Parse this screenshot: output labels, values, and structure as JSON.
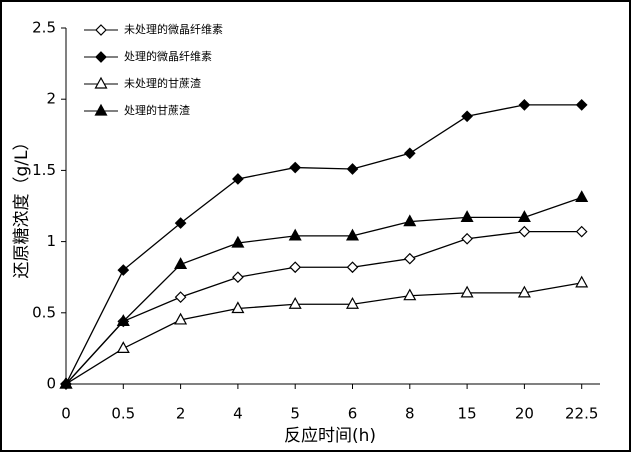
{
  "chart_data": {
    "type": "line",
    "x_label": "反应时间(h)",
    "y_label": "还原糖浓度（g/L）",
    "categories": [
      "0",
      "0.5",
      "2",
      "4",
      "5",
      "6",
      "8",
      "15",
      "20",
      "22.5"
    ],
    "series": [
      {
        "name": "未处理的微晶纤维素",
        "color": "#000000",
        "marker": "diamond",
        "filled": false,
        "values": [
          0,
          0.44,
          0.61,
          0.75,
          0.82,
          0.82,
          0.88,
          1.02,
          1.07,
          1.07
        ]
      },
      {
        "name": "处理的微晶纤维素",
        "color": "#000000",
        "marker": "diamond",
        "filled": true,
        "values": [
          0,
          0.8,
          1.13,
          1.44,
          1.52,
          1.51,
          1.62,
          1.88,
          1.96,
          1.96
        ]
      },
      {
        "name": "未处理的甘蔗渣",
        "color": "#000000",
        "marker": "triangle",
        "filled": false,
        "values": [
          0,
          0.25,
          0.45,
          0.53,
          0.56,
          0.56,
          0.62,
          0.64,
          0.64,
          0.71
        ]
      },
      {
        "name": "处理的甘蔗渣",
        "color": "#000000",
        "marker": "triangle",
        "filled": true,
        "values": [
          0,
          0.44,
          0.84,
          0.99,
          1.04,
          1.04,
          1.14,
          1.17,
          1.17,
          1.31
        ]
      }
    ],
    "ylim": [
      0,
      2.5
    ],
    "yticks": [
      0,
      0.5,
      1,
      1.5,
      2,
      2.5
    ],
    "grid": false,
    "legend": "top-left"
  }
}
